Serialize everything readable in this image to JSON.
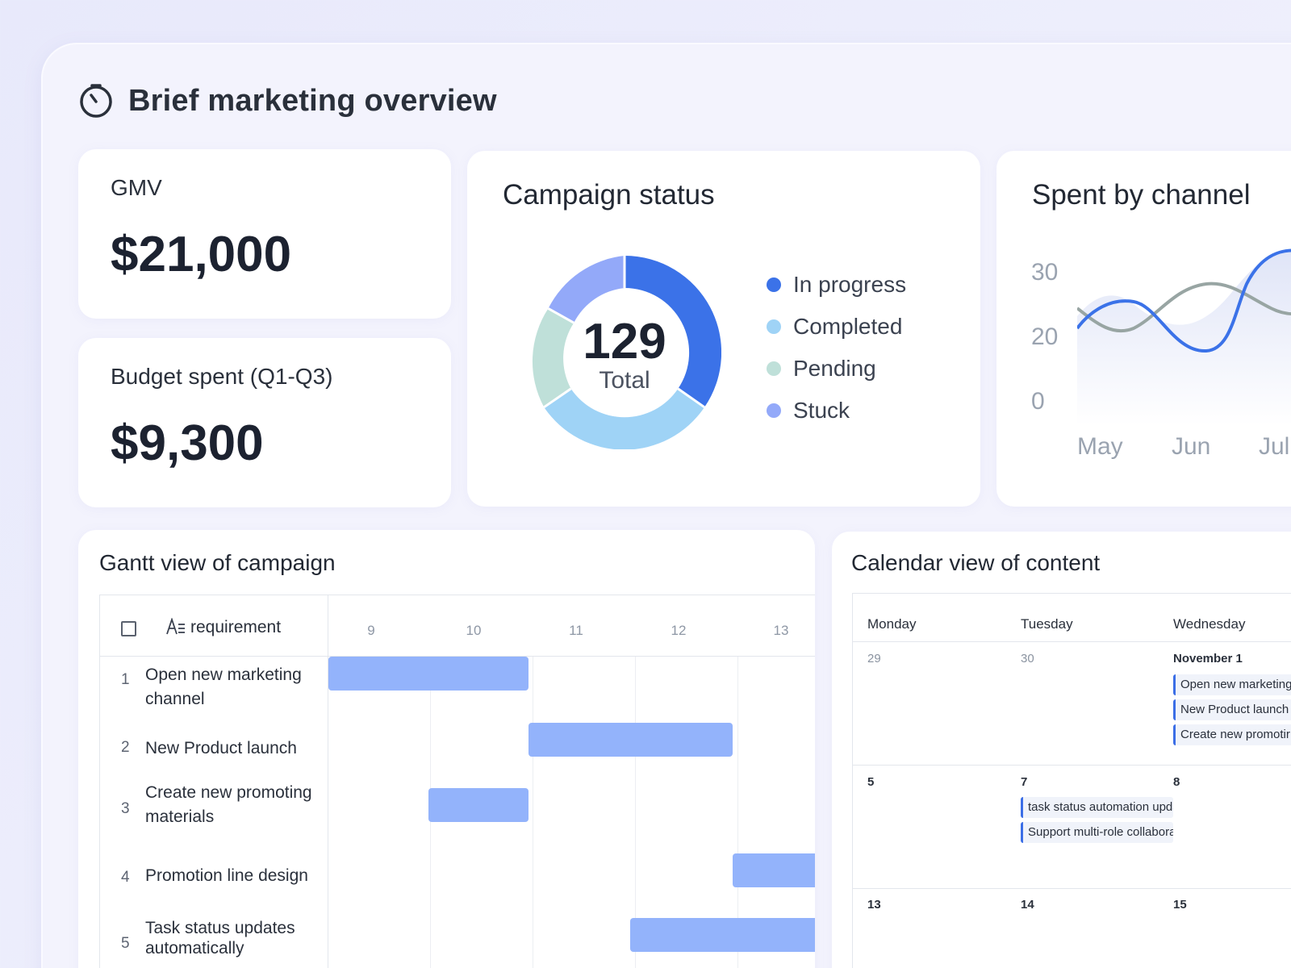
{
  "header": {
    "title": "Brief marketing overview",
    "icon": "stopwatch-icon"
  },
  "kpis": {
    "gmv": {
      "label": "GMV",
      "value": "$21,000"
    },
    "budget": {
      "label": "Budget spent (Q1-Q3)",
      "value": "$9,300"
    }
  },
  "campaign_status": {
    "title": "Campaign status",
    "total_value": "129",
    "total_label": "Total",
    "legend": [
      {
        "label": "In progress",
        "color": "#3b72e8"
      },
      {
        "label": "Completed",
        "color": "#9fd3f6"
      },
      {
        "label": "Pending",
        "color": "#bfe0d9"
      },
      {
        "label": "Stuck",
        "color": "#93a9f9"
      }
    ]
  },
  "spent_by_channel": {
    "title": "Spent by channel",
    "yticks": [
      "30",
      "20",
      "0"
    ],
    "xticks": [
      "May",
      "Jun",
      "Jul"
    ]
  },
  "gantt": {
    "title": "Gantt view of campaign",
    "column_label": "requirement",
    "days": [
      "9",
      "10",
      "11",
      "12",
      "13"
    ],
    "rows": [
      {
        "num": "1",
        "text": "Open new marketing channel"
      },
      {
        "num": "2",
        "text": "New Product launch"
      },
      {
        "num": "3",
        "text": "Create new promoting materials"
      },
      {
        "num": "4",
        "text": "Promotion line design"
      },
      {
        "num": "5",
        "text": "Task status updates automatically"
      }
    ]
  },
  "calendar": {
    "title": "Calendar view of content",
    "daynames": [
      "Monday",
      "Tuesday",
      "Wednesday"
    ],
    "week1": {
      "mon": "29",
      "tue": "30",
      "wed": "November 1",
      "events_wed": [
        "Open new marketing",
        "New Product launch",
        "Create new promotir"
      ]
    },
    "week2": {
      "mon": "5",
      "tue": "7",
      "wed": "8",
      "events_tue": [
        "task status automation upda",
        "Support multi-role collabora"
      ]
    },
    "week3": {
      "mon": "13",
      "tue": "14",
      "wed": "15"
    }
  }
}
